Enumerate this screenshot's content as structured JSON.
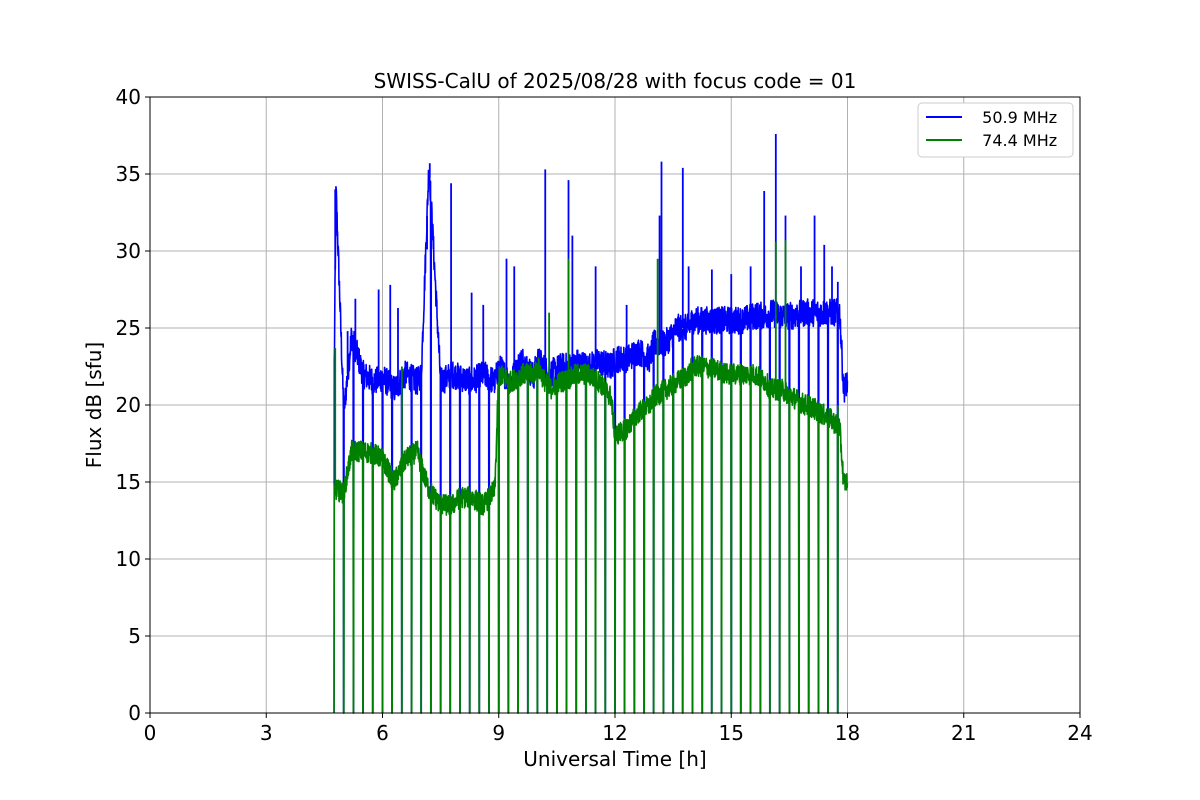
{
  "chart_data": {
    "type": "line",
    "title": "SWISS-CalU of 2025/08/28 with focus code = 01",
    "xlabel": "Universal Time [h]",
    "ylabel": "Flux dB [sfu]",
    "xlim": [
      0,
      24
    ],
    "ylim": [
      0,
      40
    ],
    "xticks": [
      0,
      3,
      6,
      9,
      12,
      15,
      18,
      21,
      24
    ],
    "yticks": [
      0,
      5,
      10,
      15,
      20,
      25,
      30,
      35,
      40
    ],
    "grid": true,
    "legend_position": "top-right",
    "series": [
      {
        "name": "  50.9 MHz",
        "color": "#0000ff",
        "x": [
          4.75,
          4.8,
          5.0,
          5.2,
          5.5,
          5.8,
          6.0,
          6.3,
          6.6,
          6.9,
          7.0,
          7.2,
          7.5,
          7.8,
          8.0,
          8.3,
          8.6,
          8.9,
          9.0,
          9.3,
          9.6,
          9.9,
          10.0,
          10.3,
          10.6,
          10.9,
          11.0,
          11.3,
          11.6,
          11.9,
          12.0,
          12.3,
          12.6,
          12.9,
          13.0,
          13.3,
          13.6,
          13.9,
          14.0,
          14.3,
          14.6,
          14.9,
          15.0,
          15.3,
          15.6,
          15.9,
          16.0,
          16.3,
          16.6,
          16.9,
          17.0,
          17.3,
          17.6,
          17.8,
          17.9,
          18.0
        ],
        "y": [
          21.0,
          34.0,
          19.5,
          24.5,
          22.0,
          21.5,
          21.8,
          21.0,
          22.0,
          21.5,
          22.0,
          35.7,
          21.5,
          22.0,
          21.8,
          21.5,
          22.0,
          21.5,
          22.5,
          21.5,
          23.0,
          21.8,
          23.0,
          22.0,
          22.5,
          22.5,
          22.8,
          22.5,
          22.8,
          22.5,
          23.0,
          23.0,
          23.5,
          23.0,
          24.0,
          24.0,
          25.0,
          25.0,
          25.5,
          25.5,
          25.5,
          25.5,
          25.5,
          25.5,
          25.8,
          25.8,
          26.0,
          25.8,
          25.8,
          26.0,
          26.0,
          26.0,
          26.0,
          26.0,
          21.0,
          21.5
        ],
        "spikes": [
          [
            4.78,
            34.0
          ],
          [
            5.1,
            24.8
          ],
          [
            5.3,
            26.9
          ],
          [
            5.9,
            27.5
          ],
          [
            6.2,
            27.8
          ],
          [
            6.4,
            26.3
          ],
          [
            7.15,
            30.1
          ],
          [
            7.22,
            35.7
          ],
          [
            7.77,
            34.4
          ],
          [
            8.3,
            27.3
          ],
          [
            8.6,
            26.5
          ],
          [
            9.2,
            29.5
          ],
          [
            9.4,
            29.0
          ],
          [
            10.2,
            35.3
          ],
          [
            10.8,
            34.6
          ],
          [
            10.9,
            31.0
          ],
          [
            11.5,
            29.0
          ],
          [
            12.3,
            26.5
          ],
          [
            13.15,
            32.3
          ],
          [
            13.2,
            35.8
          ],
          [
            13.75,
            35.4
          ],
          [
            13.9,
            29.0
          ],
          [
            14.5,
            28.8
          ],
          [
            15.0,
            28.5
          ],
          [
            15.5,
            29.0
          ],
          [
            15.85,
            33.9
          ],
          [
            16.15,
            37.6
          ],
          [
            16.4,
            32.3
          ],
          [
            16.8,
            29.0
          ],
          [
            17.15,
            32.3
          ],
          [
            17.4,
            30.4
          ],
          [
            17.6,
            29.0
          ],
          [
            17.75,
            28.0
          ]
        ]
      },
      {
        "name": "  74.4 MHz",
        "color": "#008000",
        "x": [
          4.75,
          4.8,
          5.0,
          5.2,
          5.5,
          5.8,
          6.0,
          6.3,
          6.6,
          6.9,
          7.0,
          7.2,
          7.5,
          7.8,
          8.0,
          8.3,
          8.6,
          8.9,
          9.0,
          9.3,
          9.6,
          9.9,
          10.0,
          10.3,
          10.6,
          10.9,
          11.0,
          11.3,
          11.6,
          11.9,
          12.0,
          12.3,
          12.6,
          12.9,
          13.0,
          13.3,
          13.6,
          13.9,
          14.0,
          14.3,
          14.6,
          14.9,
          15.0,
          15.3,
          15.6,
          15.9,
          16.0,
          16.3,
          16.6,
          16.9,
          17.0,
          17.3,
          17.6,
          17.8,
          17.9,
          18.0
        ],
        "y": [
          14.0,
          14.5,
          14.3,
          17.0,
          17.0,
          16.8,
          16.5,
          15.0,
          16.5,
          17.0,
          16.0,
          14.5,
          13.5,
          13.5,
          14.0,
          14.0,
          13.5,
          14.5,
          22.0,
          21.5,
          22.0,
          22.0,
          22.5,
          21.0,
          21.5,
          21.8,
          22.0,
          22.0,
          21.5,
          20.5,
          18.0,
          18.5,
          19.5,
          20.0,
          20.5,
          21.0,
          21.5,
          22.0,
          22.5,
          22.5,
          22.3,
          22.0,
          22.0,
          22.0,
          22.0,
          21.5,
          21.0,
          21.0,
          20.5,
          20.0,
          20.0,
          19.5,
          19.0,
          18.5,
          15.0,
          15.0
        ],
        "spikes": [
          [
            4.78,
            23.7
          ],
          [
            6.5,
            22.5
          ],
          [
            10.3,
            26.0
          ],
          [
            10.8,
            29.5
          ],
          [
            13.1,
            29.5
          ],
          [
            16.15,
            30.6
          ],
          [
            16.4,
            30.7
          ],
          [
            17.75,
            20.0
          ]
        ]
      }
    ],
    "calibration_drop_times": [
      4.75,
      5.0,
      5.25,
      5.5,
      5.75,
      6.0,
      6.25,
      6.5,
      6.75,
      7.0,
      7.25,
      7.5,
      7.75,
      8.0,
      8.25,
      8.5,
      8.75,
      9.0,
      9.25,
      9.5,
      9.75,
      10.0,
      10.25,
      10.5,
      10.75,
      11.0,
      11.25,
      11.5,
      11.75,
      12.0,
      12.25,
      12.5,
      12.75,
      13.0,
      13.25,
      13.5,
      13.75,
      14.0,
      14.25,
      14.5,
      14.75,
      15.0,
      15.25,
      15.5,
      15.75,
      16.0,
      16.25,
      16.5,
      16.75,
      17.0,
      17.25,
      17.5,
      17.75
    ]
  }
}
